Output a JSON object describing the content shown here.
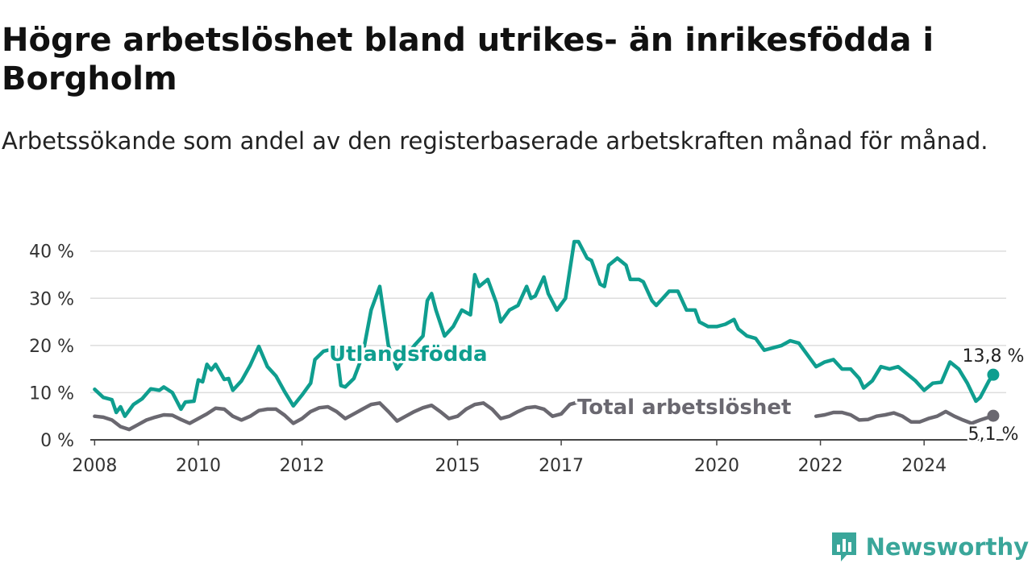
{
  "title": "Högre arbetslöshet bland utrikes- än inrikesfödda i Borgholm",
  "subtitle": "Arbetssökande som andel av den registerbaserade arbetskraften månad för månad.",
  "brand": "Newsworthy",
  "colors": {
    "foreign_born": "#0f9e8f",
    "total": "#6a6870",
    "grid": "#dddddd",
    "axis": "#444444",
    "brand": "#3aa69a"
  },
  "chart_data": {
    "type": "line",
    "title": "Högre arbetslöshet bland utrikes- än inrikesfödda i Borgholm",
    "subtitle": "Arbetssökande som andel av den registerbaserade arbetskraften månad för månad.",
    "xlabel": "",
    "ylabel": "",
    "x_ticks": [
      "2008",
      "2010",
      "2012",
      "2015",
      "2017",
      "2020",
      "2022",
      "2024"
    ],
    "y_ticks": [
      "0 %",
      "10 %",
      "20 %",
      "30 %",
      "40 %"
    ],
    "xlim": [
      "2007-12",
      "2025-08"
    ],
    "ylim": [
      0,
      42
    ],
    "grid": true,
    "legend": "none",
    "series": [
      {
        "name": "Utlandsfödda",
        "end_label": "13,8 %",
        "points": [
          [
            "2008-01",
            10.7
          ],
          [
            "2008-03",
            9.0
          ],
          [
            "2008-05",
            8.5
          ],
          [
            "2008-06",
            5.8
          ],
          [
            "2008-07",
            7.0
          ],
          [
            "2008-08",
            5.0
          ],
          [
            "2008-10",
            7.5
          ],
          [
            "2008-12",
            8.7
          ],
          [
            "2009-02",
            10.8
          ],
          [
            "2009-04",
            10.5
          ],
          [
            "2009-05",
            11.2
          ],
          [
            "2009-07",
            10.0
          ],
          [
            "2009-09",
            6.5
          ],
          [
            "2009-10",
            8.0
          ],
          [
            "2009-12",
            8.2
          ],
          [
            "2010-01",
            12.7
          ],
          [
            "2010-02",
            12.3
          ],
          [
            "2010-03",
            16.0
          ],
          [
            "2010-04",
            14.8
          ],
          [
            "2010-05",
            16.0
          ],
          [
            "2010-07",
            12.8
          ],
          [
            "2010-08",
            13.0
          ],
          [
            "2010-09",
            10.5
          ],
          [
            "2010-11",
            12.5
          ],
          [
            "2011-01",
            15.8
          ],
          [
            "2011-03",
            19.8
          ],
          [
            "2011-05",
            15.5
          ],
          [
            "2011-07",
            13.5
          ],
          [
            "2011-09",
            10.2
          ],
          [
            "2011-11",
            7.2
          ],
          [
            "2012-01",
            9.5
          ],
          [
            "2012-03",
            12.0
          ],
          [
            "2012-04",
            17.0
          ],
          [
            "2012-06",
            18.8
          ],
          [
            "2012-07",
            19.0
          ],
          [
            "2012-09",
            19.0
          ],
          [
            "2012-10",
            11.5
          ],
          [
            "2012-11",
            11.2
          ],
          [
            "2013-01",
            13.0
          ],
          [
            "2013-03",
            17.8
          ],
          [
            "2013-05",
            27.5
          ],
          [
            "2013-07",
            32.5
          ],
          [
            "2013-09",
            20.0
          ],
          [
            "2013-11",
            15.0
          ],
          [
            "2014-01",
            17.5
          ],
          [
            "2014-03",
            20.0
          ],
          [
            "2014-05",
            22.0
          ],
          [
            "2014-06",
            29.5
          ],
          [
            "2014-07",
            31.0
          ],
          [
            "2014-08",
            27.5
          ],
          [
            "2014-10",
            22.0
          ],
          [
            "2014-12",
            24.0
          ],
          [
            "2015-02",
            27.5
          ],
          [
            "2015-04",
            26.5
          ],
          [
            "2015-05",
            35.0
          ],
          [
            "2015-06",
            32.5
          ],
          [
            "2015-08",
            34.0
          ],
          [
            "2015-10",
            29.0
          ],
          [
            "2015-11",
            25.0
          ],
          [
            "2016-01",
            27.5
          ],
          [
            "2016-03",
            28.5
          ],
          [
            "2016-05",
            32.5
          ],
          [
            "2016-06",
            30.0
          ],
          [
            "2016-07",
            30.5
          ],
          [
            "2016-09",
            34.5
          ],
          [
            "2016-10",
            31.0
          ],
          [
            "2016-12",
            27.5
          ],
          [
            "2017-02",
            30.0
          ],
          [
            "2017-04",
            42.0
          ],
          [
            "2017-05",
            42.0
          ],
          [
            "2017-07",
            38.5
          ],
          [
            "2017-08",
            38.0
          ],
          [
            "2017-10",
            33.0
          ],
          [
            "2017-11",
            32.5
          ],
          [
            "2017-12",
            37.0
          ],
          [
            "2018-02",
            38.5
          ],
          [
            "2018-04",
            37.0
          ],
          [
            "2018-05",
            34.0
          ],
          [
            "2018-07",
            34.0
          ],
          [
            "2018-08",
            33.5
          ],
          [
            "2018-10",
            29.5
          ],
          [
            "2018-11",
            28.5
          ],
          [
            "2019-01",
            30.5
          ],
          [
            "2019-02",
            31.5
          ],
          [
            "2019-04",
            31.5
          ],
          [
            "2019-06",
            27.5
          ],
          [
            "2019-08",
            27.5
          ],
          [
            "2019-09",
            25.0
          ],
          [
            "2019-11",
            24.0
          ],
          [
            "2020-01",
            24.0
          ],
          [
            "2020-03",
            24.5
          ],
          [
            "2020-05",
            25.5
          ],
          [
            "2020-06",
            23.5
          ],
          [
            "2020-08",
            22.0
          ],
          [
            "2020-10",
            21.5
          ],
          [
            "2020-12",
            19.0
          ],
          [
            "2021-02",
            19.5
          ],
          [
            "2021-04",
            20.0
          ],
          [
            "2021-06",
            21.0
          ],
          [
            "2021-08",
            20.5
          ],
          [
            "2021-10",
            18.0
          ],
          [
            "2021-12",
            15.5
          ],
          [
            "2022-02",
            16.5
          ],
          [
            "2022-04",
            17.0
          ],
          [
            "2022-06",
            15.0
          ],
          [
            "2022-08",
            15.0
          ],
          [
            "2022-10",
            13.0
          ],
          [
            "2022-11",
            11.0
          ],
          [
            "2023-01",
            12.5
          ],
          [
            "2023-03",
            15.5
          ],
          [
            "2023-05",
            15.0
          ],
          [
            "2023-07",
            15.5
          ],
          [
            "2023-09",
            14.0
          ],
          [
            "2023-11",
            12.5
          ],
          [
            "2024-01",
            10.5
          ],
          [
            "2024-03",
            12.0
          ],
          [
            "2024-05",
            12.2
          ],
          [
            "2024-07",
            16.5
          ],
          [
            "2024-09",
            15.0
          ],
          [
            "2024-11",
            12.0
          ],
          [
            "2025-01",
            8.2
          ],
          [
            "2025-02",
            9.0
          ],
          [
            "2025-04",
            12.5
          ],
          [
            "2025-05",
            13.8
          ]
        ]
      },
      {
        "name": "Total arbetslöshet",
        "end_label": "5,1 %",
        "points": [
          [
            "2008-01",
            5.0
          ],
          [
            "2008-03",
            4.8
          ],
          [
            "2008-05",
            4.2
          ],
          [
            "2008-07",
            2.8
          ],
          [
            "2008-09",
            2.2
          ],
          [
            "2008-11",
            3.2
          ],
          [
            "2009-01",
            4.2
          ],
          [
            "2009-03",
            4.8
          ],
          [
            "2009-05",
            5.3
          ],
          [
            "2009-07",
            5.2
          ],
          [
            "2009-09",
            4.3
          ],
          [
            "2009-11",
            3.5
          ],
          [
            "2010-01",
            4.5
          ],
          [
            "2010-03",
            5.5
          ],
          [
            "2010-05",
            6.7
          ],
          [
            "2010-07",
            6.5
          ],
          [
            "2010-09",
            5.0
          ],
          [
            "2010-11",
            4.2
          ],
          [
            "2011-01",
            5.0
          ],
          [
            "2011-03",
            6.2
          ],
          [
            "2011-05",
            6.5
          ],
          [
            "2011-07",
            6.5
          ],
          [
            "2011-09",
            5.2
          ],
          [
            "2011-11",
            3.5
          ],
          [
            "2012-01",
            4.5
          ],
          [
            "2012-03",
            6.0
          ],
          [
            "2012-05",
            6.8
          ],
          [
            "2012-07",
            7.0
          ],
          [
            "2012-09",
            6.0
          ],
          [
            "2012-11",
            4.5
          ],
          [
            "2013-01",
            5.5
          ],
          [
            "2013-03",
            6.5
          ],
          [
            "2013-05",
            7.5
          ],
          [
            "2013-07",
            7.8
          ],
          [
            "2013-09",
            6.0
          ],
          [
            "2013-11",
            4.0
          ],
          [
            "2014-01",
            5.0
          ],
          [
            "2014-03",
            6.0
          ],
          [
            "2014-05",
            6.8
          ],
          [
            "2014-07",
            7.3
          ],
          [
            "2014-09",
            6.0
          ],
          [
            "2014-11",
            4.5
          ],
          [
            "2015-01",
            5.0
          ],
          [
            "2015-03",
            6.5
          ],
          [
            "2015-05",
            7.5
          ],
          [
            "2015-07",
            7.8
          ],
          [
            "2015-09",
            6.5
          ],
          [
            "2015-11",
            4.5
          ],
          [
            "2016-01",
            5.0
          ],
          [
            "2016-03",
            6.0
          ],
          [
            "2016-05",
            6.8
          ],
          [
            "2016-07",
            7.0
          ],
          [
            "2016-09",
            6.5
          ],
          [
            "2016-11",
            5.0
          ],
          [
            "2017-01",
            5.5
          ],
          [
            "2017-03",
            7.5
          ],
          [
            "2017-05",
            8.0
          ]
        ],
        "points_tail": [
          [
            "2021-12",
            5.0
          ],
          [
            "2022-02",
            5.3
          ],
          [
            "2022-04",
            5.8
          ],
          [
            "2022-06",
            5.8
          ],
          [
            "2022-08",
            5.3
          ],
          [
            "2022-10",
            4.2
          ],
          [
            "2022-12",
            4.3
          ],
          [
            "2023-02",
            5.0
          ],
          [
            "2023-04",
            5.3
          ],
          [
            "2023-06",
            5.7
          ],
          [
            "2023-08",
            5.0
          ],
          [
            "2023-10",
            3.8
          ],
          [
            "2023-12",
            3.8
          ],
          [
            "2024-02",
            4.5
          ],
          [
            "2024-04",
            5.0
          ],
          [
            "2024-06",
            6.0
          ],
          [
            "2024-08",
            5.0
          ],
          [
            "2024-10",
            4.2
          ],
          [
            "2024-12",
            3.5
          ],
          [
            "2025-02",
            4.2
          ],
          [
            "2025-05",
            5.1
          ]
        ]
      }
    ]
  }
}
